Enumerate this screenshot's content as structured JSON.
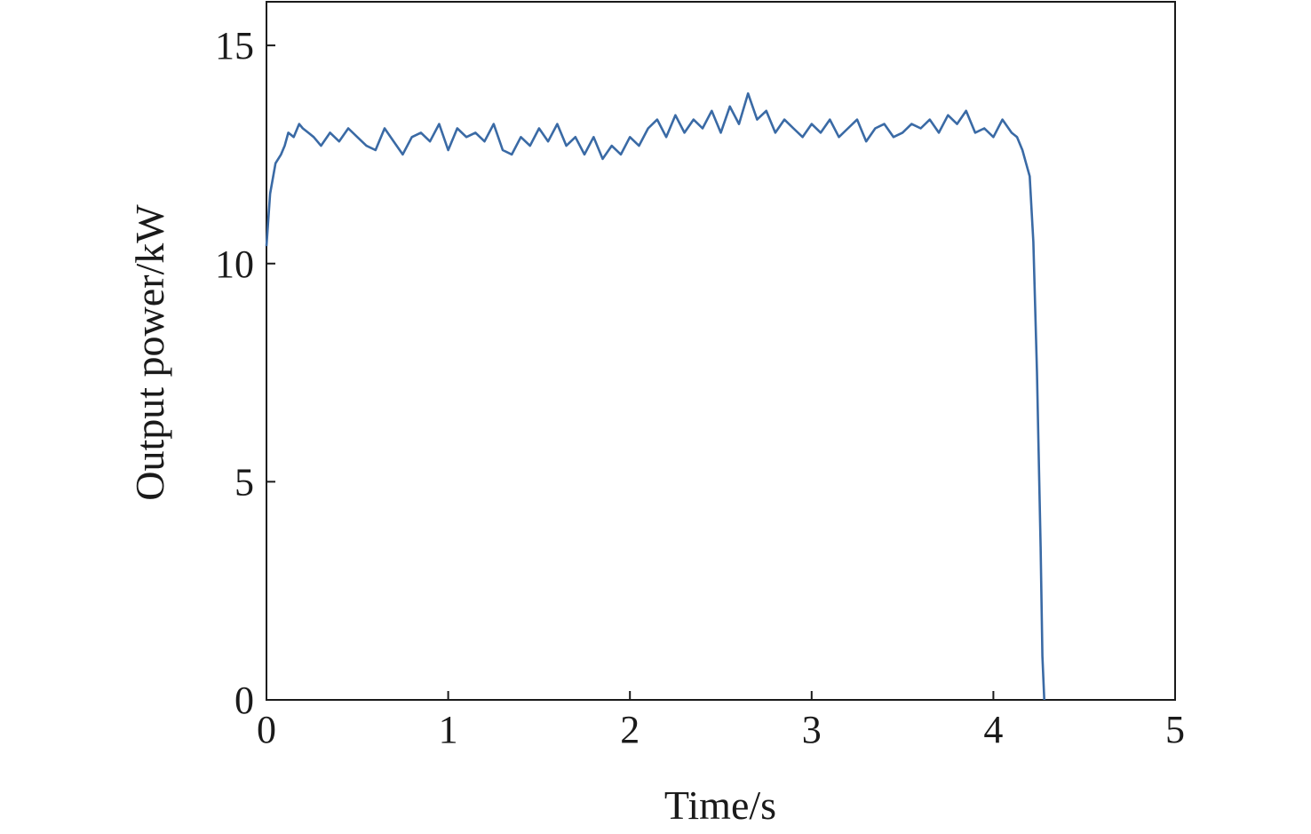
{
  "chart_data": {
    "type": "line",
    "title": "",
    "xlabel": "Time/s",
    "ylabel": "Output power/kW",
    "xlim": [
      0,
      5
    ],
    "ylim": [
      0,
      16
    ],
    "xticks": [
      "0",
      "1",
      "2",
      "3",
      "4",
      "5"
    ],
    "yticks": [
      "0",
      "5",
      "10",
      "15"
    ],
    "grid": false,
    "legend": "none",
    "line_color": "#3a6aa5",
    "series": [
      {
        "x": [
          0,
          0.02,
          0.05,
          0.08,
          0.1,
          0.12,
          0.15,
          0.18,
          0.2,
          0.23,
          0.26,
          0.3,
          0.35,
          0.4,
          0.45,
          0.5,
          0.55,
          0.6,
          0.65,
          0.7,
          0.75,
          0.8,
          0.85,
          0.9,
          0.95,
          1.0,
          1.05,
          1.1,
          1.15,
          1.2,
          1.25,
          1.3,
          1.35,
          1.4,
          1.45,
          1.5,
          1.55,
          1.6,
          1.65,
          1.7,
          1.75,
          1.8,
          1.85,
          1.9,
          1.95,
          2.0,
          2.05,
          2.1,
          2.15,
          2.2,
          2.25,
          2.3,
          2.35,
          2.4,
          2.45,
          2.5,
          2.55,
          2.6,
          2.65,
          2.7,
          2.75,
          2.8,
          2.85,
          2.9,
          2.95,
          3.0,
          3.05,
          3.1,
          3.15,
          3.2,
          3.25,
          3.3,
          3.35,
          3.4,
          3.45,
          3.5,
          3.55,
          3.6,
          3.65,
          3.7,
          3.75,
          3.8,
          3.85,
          3.9,
          3.95,
          4.0,
          4.05,
          4.1,
          4.13,
          4.16,
          4.18,
          4.2,
          4.22,
          4.24,
          4.26,
          4.27,
          4.28
        ],
        "y": [
          10.4,
          11.6,
          12.3,
          12.5,
          12.7,
          13.0,
          12.9,
          13.2,
          13.1,
          13.0,
          12.9,
          12.7,
          13.0,
          12.8,
          13.1,
          12.9,
          12.7,
          12.6,
          13.1,
          12.8,
          12.5,
          12.9,
          13.0,
          12.8,
          13.2,
          12.6,
          13.1,
          12.9,
          13.0,
          12.8,
          13.2,
          12.6,
          12.5,
          12.9,
          12.7,
          13.1,
          12.8,
          13.2,
          12.7,
          12.9,
          12.5,
          12.9,
          12.4,
          12.7,
          12.5,
          12.9,
          12.7,
          13.1,
          13.3,
          12.9,
          13.4,
          13.0,
          13.3,
          13.1,
          13.5,
          13.0,
          13.6,
          13.2,
          13.9,
          13.3,
          13.5,
          13.0,
          13.3,
          13.1,
          12.9,
          13.2,
          13.0,
          13.3,
          12.9,
          13.1,
          13.3,
          12.8,
          13.1,
          13.2,
          12.9,
          13.0,
          13.2,
          13.1,
          13.3,
          13.0,
          13.4,
          13.2,
          13.5,
          13.0,
          13.1,
          12.9,
          13.3,
          13.0,
          12.9,
          12.6,
          12.3,
          12.0,
          10.5,
          7.5,
          3.5,
          1.0,
          0.0
        ]
      }
    ]
  }
}
